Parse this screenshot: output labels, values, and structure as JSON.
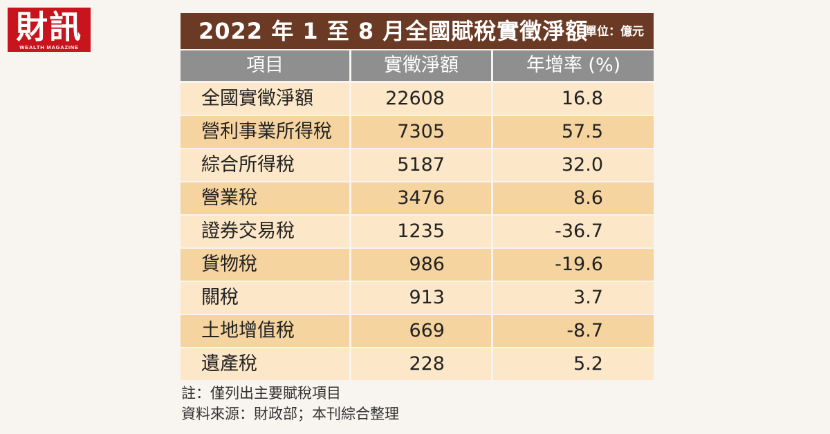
{
  "logo": {
    "text": "財訊",
    "subtext": "WEALTH MAGAZINE"
  },
  "title": "2022 年 1 至 8 月全國賦稅實徵淨額",
  "unit": "單位：億元",
  "chart_data": {
    "type": "table",
    "columns": [
      "項目",
      "實徵淨額",
      "年增率 (%)"
    ],
    "rows": [
      {
        "item": "全國實徵淨額",
        "amount": "22608",
        "growth": "16.8"
      },
      {
        "item": "營利事業所得稅",
        "amount": "7305",
        "growth": "57.5"
      },
      {
        "item": "綜合所得稅",
        "amount": "5187",
        "growth": "32.0"
      },
      {
        "item": "營業稅",
        "amount": "3476",
        "growth": "8.6"
      },
      {
        "item": "證券交易稅",
        "amount": "1235",
        "growth": "-36.7"
      },
      {
        "item": "貨物稅",
        "amount": "986",
        "growth": "-19.6"
      },
      {
        "item": "關稅",
        "amount": "913",
        "growth": "3.7"
      },
      {
        "item": "土地增值稅",
        "amount": "669",
        "growth": "-8.7"
      },
      {
        "item": "遺產稅",
        "amount": "228",
        "growth": "5.2"
      }
    ]
  },
  "notes": {
    "note": "註：僅列出主要賦稅項目",
    "source": "資料來源：財政部；本刊綜合整理"
  },
  "colors": {
    "title_bg": "#6b3a25",
    "header_bg": "#8f8f8f",
    "row_light": "#fce7c8",
    "row_dark": "#f6d49f",
    "logo_bg": "#c8151d"
  }
}
